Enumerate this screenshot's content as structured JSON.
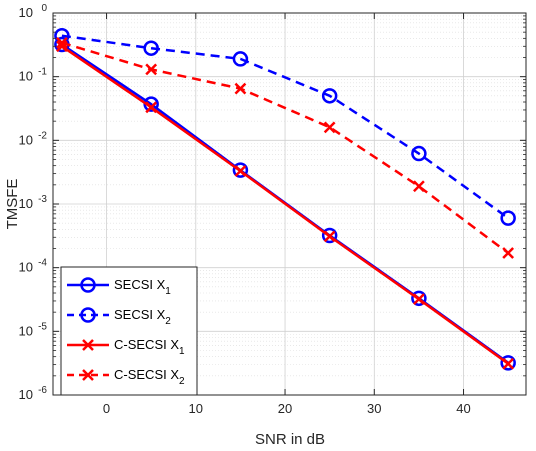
{
  "chart_data": {
    "type": "line",
    "xlabel": "SNR in dB",
    "ylabel": "TMSFE",
    "xlim": [
      -6,
      47
    ],
    "ylim_log10": [
      -6,
      0
    ],
    "yscale": "log",
    "grid": true,
    "legend_position": "bottom-left",
    "xticks": [
      0,
      10,
      20,
      30,
      40
    ],
    "xtick_labels": [
      "0",
      "10",
      "20",
      "30",
      "40"
    ],
    "yticks_exp": [
      -6,
      -5,
      -4,
      -3,
      -2,
      -1,
      0
    ],
    "ytick_base": "10",
    "ytick_exps": [
      "-6",
      "-5",
      "-4",
      "-3",
      "-2",
      "-1",
      "0"
    ],
    "x": [
      -5,
      5,
      15,
      25,
      35,
      45
    ],
    "series": [
      {
        "name": "SECSI X",
        "sub": "1",
        "color": "#0000ff",
        "line": "solid",
        "marker": "circle",
        "values": [
          0.32,
          0.037,
          0.0034,
          0.00032,
          3.3e-05,
          3.2e-06
        ]
      },
      {
        "name": "SECSI X",
        "sub": "2",
        "color": "#0000ff",
        "line": "dashed",
        "marker": "circle",
        "values": [
          0.44,
          0.28,
          0.19,
          0.05,
          0.0062,
          0.0006
        ]
      },
      {
        "name": "C-SECSI X",
        "sub": "1",
        "color": "#ff0000",
        "line": "solid",
        "marker": "x",
        "values": [
          0.3,
          0.033,
          0.0033,
          0.00031,
          3.2e-05,
          3.1e-06
        ]
      },
      {
        "name": "C-SECSI X",
        "sub": "2",
        "color": "#ff0000",
        "line": "dashed",
        "marker": "x",
        "values": [
          0.34,
          0.13,
          0.065,
          0.016,
          0.0019,
          0.00017
        ]
      }
    ]
  }
}
